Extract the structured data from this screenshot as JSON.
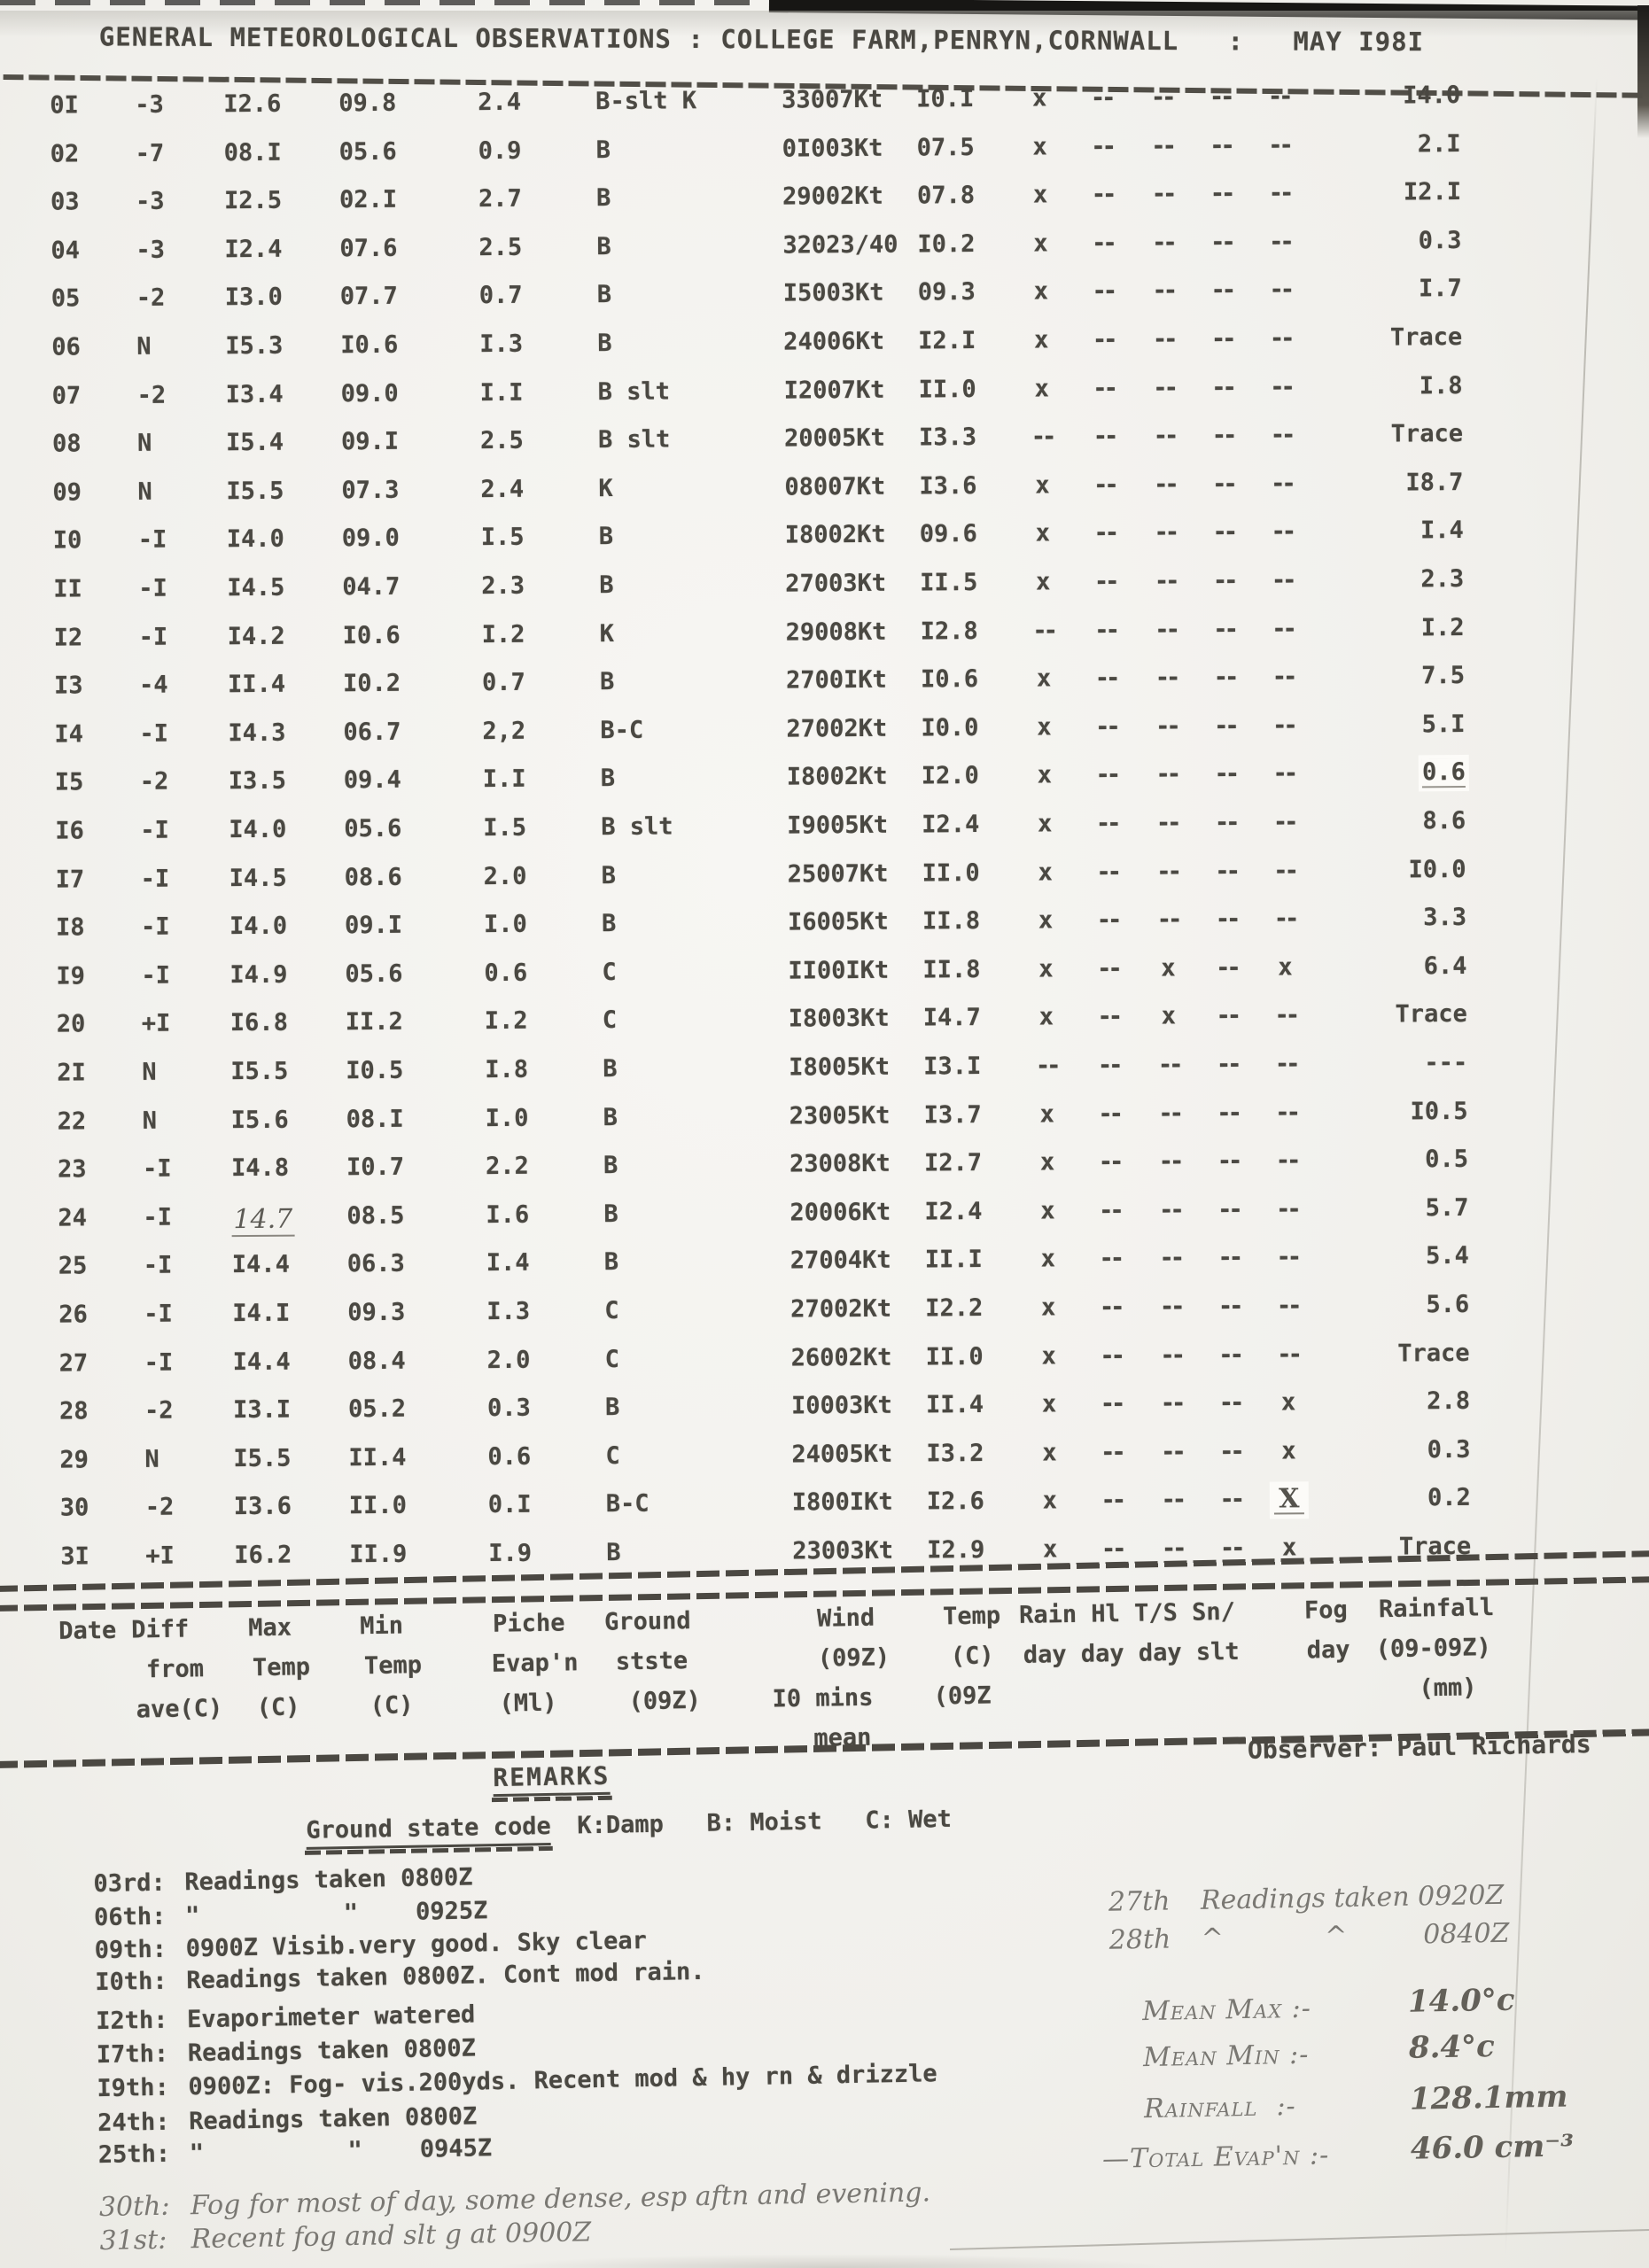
{
  "title": "GENERAL METEOROLOGICAL OBSERVATIONS : COLLEGE FARM,PENRYN,CORNWALL   :   MAY I98I",
  "columns": {
    "date": [
      "Date"
    ],
    "diff": [
      "Diff",
      "from",
      "ave(C)"
    ],
    "max": [
      "Max",
      "Temp",
      "(C)"
    ],
    "min": [
      "Min",
      "Temp",
      "(C)"
    ],
    "piche": [
      "Piche",
      "Evap'n",
      "(Ml)"
    ],
    "ground": [
      "Ground",
      "stste",
      "(09Z)"
    ],
    "wind": [
      "Wind",
      "(09Z)",
      "I0 mins",
      "mean"
    ],
    "temp": [
      "Temp",
      "(C)",
      "(09Z"
    ],
    "rainfall": [
      "Rainfall",
      "(09-09Z)",
      "(mm)"
    ],
    "marks_line1": "Rain Hl T/S Sn/",
    "marks_fog1": "Fog",
    "marks_line2": "day day day slt",
    "marks_fog2": "day"
  },
  "rows": [
    [
      "0I",
      "-3",
      "I2.6",
      "09.8",
      "2.4",
      "B-slt K",
      "33007Kt",
      "I0.I",
      "x----",
      "I4.0"
    ],
    [
      "02",
      "-7",
      "08.I",
      "05.6",
      "0.9",
      "B",
      "0I003Kt",
      "07.5",
      "x----",
      "2.I"
    ],
    [
      "03",
      "-3",
      "I2.5",
      "02.I",
      "2.7",
      "B",
      "29002Kt",
      "07.8",
      "x----",
      "I2.I"
    ],
    [
      "04",
      "-3",
      "I2.4",
      "07.6",
      "2.5",
      "B",
      "32023/40",
      "I0.2",
      "x----",
      "0.3"
    ],
    [
      "05",
      "-2",
      "I3.0",
      "07.7",
      "0.7",
      "B",
      "I5003Kt",
      "09.3",
      "x----",
      "I.7"
    ],
    [
      "06",
      "N",
      "I5.3",
      "I0.6",
      "I.3",
      "B",
      "24006Kt",
      "I2.I",
      "x----",
      "Trace"
    ],
    [
      "07",
      "-2",
      "I3.4",
      "09.0",
      "I.I",
      "B slt",
      "I2007Kt",
      "II.0",
      "x----",
      "I.8"
    ],
    [
      "08",
      "N",
      "I5.4",
      "09.I",
      "2.5",
      "B slt",
      "20005Kt",
      "I3.3",
      "-----",
      "Trace"
    ],
    [
      "09",
      "N",
      "I5.5",
      "07.3",
      "2.4",
      "K",
      "08007Kt",
      "I3.6",
      "x----",
      "I8.7"
    ],
    [
      "I0",
      "-I",
      "I4.0",
      "09.0",
      "I.5",
      "B",
      "I8002Kt",
      "09.6",
      "x----",
      "I.4"
    ],
    [
      "II",
      "-I",
      "I4.5",
      "04.7",
      "2.3",
      "B",
      "27003Kt",
      "II.5",
      "x----",
      "2.3"
    ],
    [
      "I2",
      "-I",
      "I4.2",
      "I0.6",
      "I.2",
      "K",
      "29008Kt",
      "I2.8",
      "-----",
      "I.2"
    ],
    [
      "I3",
      "-4",
      "II.4",
      "I0.2",
      "0.7",
      "B",
      "2700IKt",
      "I0.6",
      "x----",
      "7.5"
    ],
    [
      "I4",
      "-I",
      "I4.3",
      "06.7",
      "2,2",
      "B-C",
      "27002Kt",
      "I0.0",
      "x----",
      "5.I"
    ],
    [
      "I5",
      "-2",
      "I3.5",
      "09.4",
      "I.I",
      "B",
      "I8002Kt",
      "I2.0",
      "x----",
      "0.6"
    ],
    [
      "I6",
      "-I",
      "I4.0",
      "05.6",
      "I.5",
      "B slt",
      "I9005Kt",
      "I2.4",
      "x----",
      "8.6"
    ],
    [
      "I7",
      "-I",
      "I4.5",
      "08.6",
      "2.0",
      "B",
      "25007Kt",
      "II.0",
      "x----",
      "I0.0"
    ],
    [
      "I8",
      "-I",
      "I4.0",
      "09.I",
      "I.0",
      "B",
      "I6005Kt",
      "II.8",
      "x----",
      "3.3"
    ],
    [
      "I9",
      "-I",
      "I4.9",
      "05.6",
      "0.6",
      "C",
      "II00IKt",
      "II.8",
      "x-x-x",
      "6.4"
    ],
    [
      "20",
      "+I",
      "I6.8",
      "II.2",
      "I.2",
      "C",
      "I8003Kt",
      "I4.7",
      "x-x--",
      "Trace"
    ],
    [
      "2I",
      "N",
      "I5.5",
      "I0.5",
      "I.8",
      "B",
      "I8005Kt",
      "I3.I",
      "-----",
      "---"
    ],
    [
      "22",
      "N",
      "I5.6",
      "08.I",
      "I.0",
      "B",
      "23005Kt",
      "I3.7",
      "x----",
      "I0.5"
    ],
    [
      "23",
      "-I",
      "I4.8",
      "I0.7",
      "2.2",
      "B",
      "23008Kt",
      "I2.7",
      "x----",
      "0.5"
    ],
    [
      "24",
      "-I",
      "14.7",
      "08.5",
      "I.6",
      "B",
      "20006Kt",
      "I2.4",
      "x----",
      "5.7"
    ],
    [
      "25",
      "-I",
      "I4.4",
      "06.3",
      "I.4",
      "B",
      "27004Kt",
      "II.I",
      "x----",
      "5.4"
    ],
    [
      "26",
      "-I",
      "I4.I",
      "09.3",
      "I.3",
      "C",
      "27002Kt",
      "I2.2",
      "x----",
      "5.6"
    ],
    [
      "27",
      "-I",
      "I4.4",
      "08.4",
      "2.0",
      "C",
      "26002Kt",
      "II.0",
      "x----",
      "Trace"
    ],
    [
      "28",
      "-2",
      "I3.I",
      "05.2",
      "0.3",
      "B",
      "I0003Kt",
      "II.4",
      "x---x",
      "2.8"
    ],
    [
      "29",
      "N",
      "I5.5",
      "II.4",
      "0.6",
      "C",
      "24005Kt",
      "I3.2",
      "x---x",
      "0.3"
    ],
    [
      "30",
      "-2",
      "I3.6",
      "II.0",
      "0.I",
      "B-C",
      "I800IKt",
      "I2.6",
      "x---X",
      "0.2"
    ],
    [
      "3I",
      "+I",
      "I6.2",
      "II.9",
      "I.9",
      "B",
      "23003Kt",
      "I2.9",
      "x---x",
      "Trace"
    ]
  ],
  "remarks": {
    "observer": "Observer: Paul Richards",
    "heading": "REMARKS",
    "ground_code_label": "Ground state code",
    "ground_code_rest": "K:Damp   B: Moist   C: Wet",
    "items": [
      {
        "label": "03rd:",
        "text": "Readings taken 0800Z",
        "hand": false
      },
      {
        "label": "06th:",
        "text": "\"          \"    0925Z",
        "hand": false
      },
      {
        "label": "09th:",
        "text": "0900Z Visib.very good. Sky clear",
        "hand": false
      },
      {
        "label": "I0th:",
        "text": "Readings taken 0800Z. Cont mod rain.",
        "hand": false
      },
      {
        "label": "I2th:",
        "text": "Evaporimeter watered",
        "hand": false
      },
      {
        "label": "I7th:",
        "text": "Readings taken 0800Z",
        "hand": false
      },
      {
        "label": "I9th:",
        "text": "0900Z: Fog- vis.200yds. Recent mod & hy rn & drizzle",
        "hand": false
      },
      {
        "label": "24th:",
        "text": "Readings taken 0800Z",
        "hand": false
      },
      {
        "label": "25th:",
        "text": "\"          \"    0945Z",
        "hand": false
      },
      {
        "label": "30th:",
        "text": "Fog for most of day, some dense, esp aftn and evening.",
        "hand": true
      },
      {
        "label": "31st:",
        "text": "Recent fog and slt g at 0900Z",
        "hand": true
      }
    ]
  },
  "handnotes": [
    {
      "label": "27th",
      "text": "Readings taken 0920Z"
    },
    {
      "label": "28th",
      "text": "^            ^         0840Z"
    }
  ],
  "summary": [
    {
      "label": "Mean Max :-",
      "value": "14.0°c"
    },
    {
      "label": "Mean Min :-",
      "value": "8.4°c"
    },
    {
      "label": "Rainfall  :-",
      "value": "128.1mm"
    },
    {
      "label": "—Total Evap'n :-",
      "value": "46.0 cm⁻³"
    }
  ]
}
